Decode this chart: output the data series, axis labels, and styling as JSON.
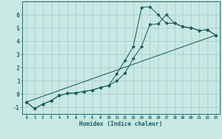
{
  "xlabel": "Humidex (Indice chaleur)",
  "background_color": "#c8e8e4",
  "grid_color": "#a8cccc",
  "line_color": "#1a6060",
  "xlim": [
    -0.5,
    23.5
  ],
  "ylim": [
    -1.5,
    7.0
  ],
  "yticks": [
    -1,
    0,
    1,
    2,
    3,
    4,
    5,
    6
  ],
  "xticks": [
    0,
    1,
    2,
    3,
    4,
    5,
    6,
    7,
    8,
    9,
    10,
    11,
    12,
    13,
    14,
    15,
    16,
    17,
    18,
    19,
    20,
    21,
    22,
    23
  ],
  "series1_x": [
    0,
    1,
    2,
    3,
    4,
    5,
    6,
    7,
    8,
    9,
    10,
    11,
    12,
    13,
    14,
    15,
    16,
    17,
    18,
    19,
    20,
    21,
    22,
    23
  ],
  "series1_y": [
    -0.6,
    -1.1,
    -0.75,
    -0.5,
    -0.1,
    0.05,
    0.1,
    0.2,
    0.3,
    0.5,
    0.65,
    1.0,
    1.6,
    2.7,
    3.6,
    5.25,
    5.3,
    6.0,
    5.35,
    5.1,
    5.0,
    4.8,
    4.85,
    4.45
  ],
  "series2_x": [
    0,
    1,
    2,
    3,
    4,
    5,
    6,
    7,
    8,
    9,
    10,
    11,
    12,
    13,
    14,
    15,
    16,
    17,
    18,
    19,
    20,
    21,
    22,
    23
  ],
  "series2_y": [
    -0.6,
    -1.1,
    -0.75,
    -0.5,
    -0.1,
    0.05,
    0.1,
    0.2,
    0.3,
    0.5,
    0.65,
    1.55,
    2.55,
    3.6,
    6.55,
    6.6,
    6.0,
    5.35,
    5.35,
    5.1,
    5.0,
    4.8,
    4.85,
    4.45
  ],
  "series3_x": [
    0,
    23
  ],
  "series3_y": [
    -0.6,
    4.45
  ]
}
